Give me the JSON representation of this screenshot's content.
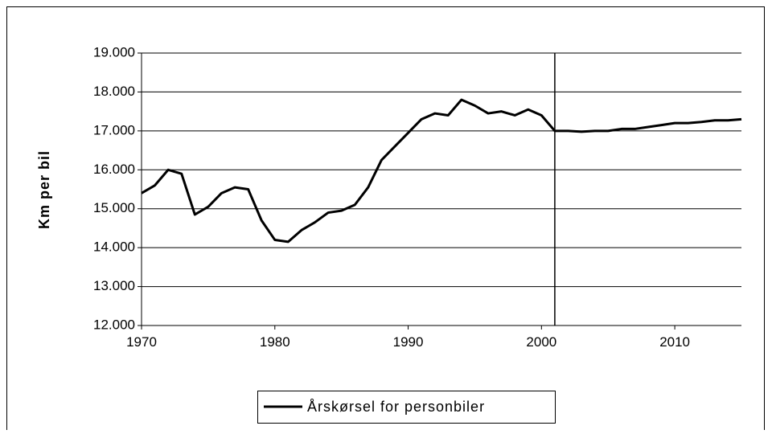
{
  "chart_data": {
    "type": "line",
    "y_label": "Km per bil",
    "x": [
      1970,
      1971,
      1972,
      1973,
      1974,
      1975,
      1976,
      1977,
      1978,
      1979,
      1980,
      1981,
      1982,
      1983,
      1984,
      1985,
      1986,
      1987,
      1988,
      1989,
      1990,
      1991,
      1992,
      1993,
      1994,
      1995,
      1996,
      1997,
      1998,
      1999,
      2000,
      2001,
      2002,
      2003,
      2004,
      2005,
      2006,
      2007,
      2008,
      2009,
      2010,
      2011,
      2012,
      2013,
      2014,
      2015
    ],
    "series": [
      {
        "name": "Årskørsel for personbiler",
        "color": "#000000",
        "values": [
          15400,
          15600,
          16000,
          15900,
          14850,
          15050,
          15400,
          15550,
          15500,
          14700,
          14200,
          14150,
          14450,
          14650,
          14900,
          14950,
          15100,
          15550,
          16250,
          16600,
          16950,
          17300,
          17450,
          17400,
          17800,
          17650,
          17450,
          17500,
          17400,
          17550,
          17400,
          17000,
          17000,
          16980,
          17000,
          17000,
          17050,
          17050,
          17100,
          17150,
          17200,
          17200,
          17230,
          17270,
          17270,
          17300
        ]
      }
    ],
    "xlim": [
      1970,
      2015
    ],
    "xticks": [
      1970,
      1980,
      1990,
      2000,
      2010
    ],
    "ylim": [
      12000,
      19000
    ],
    "yticks": [
      {
        "value": 12000,
        "label": "12.000"
      },
      {
        "value": 13000,
        "label": "13.000"
      },
      {
        "value": 14000,
        "label": "14.000"
      },
      {
        "value": 15000,
        "label": "15.000"
      },
      {
        "value": 16000,
        "label": "16.000"
      },
      {
        "value": 17000,
        "label": "17.000"
      },
      {
        "value": 18000,
        "label": "18.000"
      },
      {
        "value": 19000,
        "label": "19.000"
      }
    ],
    "vline": 2001,
    "grid": true,
    "legend": "bottom"
  }
}
